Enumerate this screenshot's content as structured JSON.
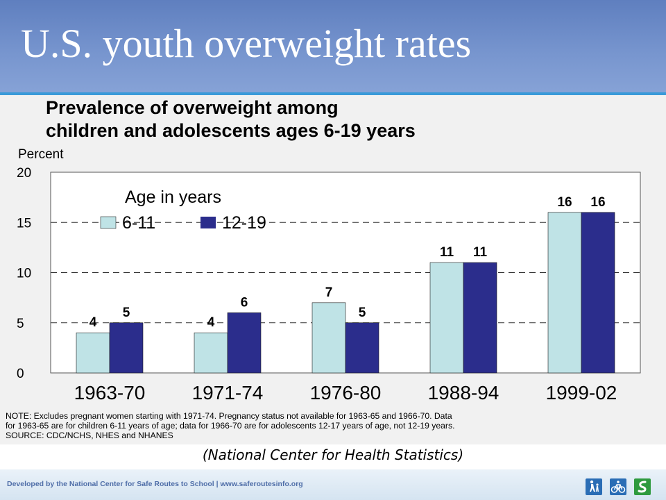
{
  "slide": {
    "title": "U.S. youth overweight rates",
    "citation": "(National Center for Health Statistics)"
  },
  "chart_data": {
    "type": "bar",
    "title_line1": "Prevalence of overweight among",
    "title_line2": "children and adolescents ages 6-19 years",
    "ylabel": "Percent",
    "xlabel": "",
    "ylim": [
      0,
      20
    ],
    "yticks": [
      0,
      5,
      10,
      15,
      20
    ],
    "grid": "dashed horizontal at 5, 10, 15",
    "legend_title": "Age in years",
    "legend_position": "top-left",
    "categories": [
      "1963-70",
      "1971-74",
      "1976-80",
      "1988-94",
      "1999-02"
    ],
    "series": [
      {
        "name": "6-11",
        "color": "#bfe3e6",
        "values": [
          4,
          4,
          7,
          11,
          16
        ]
      },
      {
        "name": "12-19",
        "color": "#2b2d8c",
        "values": [
          5,
          6,
          5,
          11,
          16
        ]
      }
    ]
  },
  "notes": {
    "line1": "NOTE:  Excludes pregnant women starting with 1971-74.  Pregnancy status not available for 1963-65 and 1966-70.  Data",
    "line2": "for 1963-65 are for children 6-11 years of age; data for 1966-70 are for adolescents 12-17 years of age, not 12-19 years.",
    "line3": "SOURCE: CDC/NCHS, NHES and NHANES"
  },
  "footer": {
    "text": "Developed by the National Center for Safe Routes to School  |  www.saferoutesinfo.org",
    "icons": [
      "walking-child-icon",
      "bicycle-icon",
      "srts-logo-icon"
    ],
    "accent_blue": "#2a6db5",
    "accent_green": "#2e9a3e"
  }
}
